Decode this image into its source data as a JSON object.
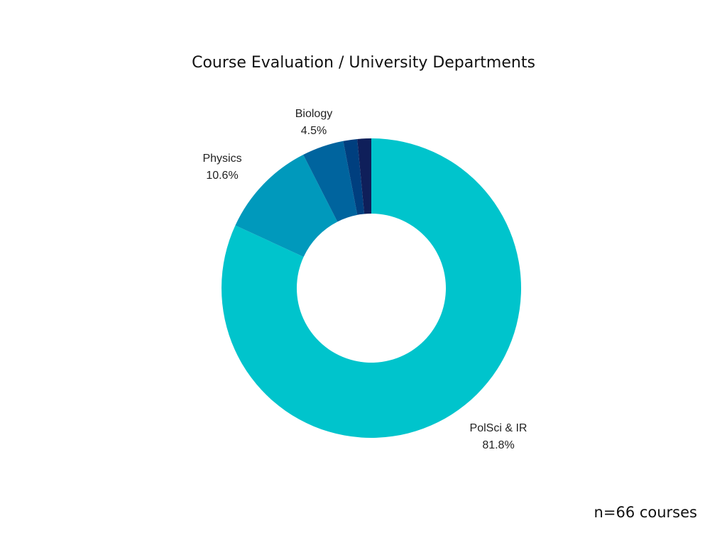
{
  "chart_data": {
    "type": "pie",
    "donut": true,
    "title": "Course Evaluation / University Departments",
    "note": "n=66 courses",
    "start": "top",
    "direction": "clockwise",
    "slices": [
      {
        "category": "PolSci & IR",
        "value": 81.8,
        "label_value": "81.8%",
        "color": "#00c4cc",
        "labeled": true
      },
      {
        "category": "Physics",
        "value": 10.6,
        "label_value": "10.6%",
        "color": "#0099bc",
        "labeled": true
      },
      {
        "category": "Biology",
        "value": 4.5,
        "label_value": "4.5%",
        "color": "#00649e",
        "labeled": true
      },
      {
        "category": "",
        "value": 1.5,
        "label_value": "",
        "color": "#003f7f",
        "labeled": false
      },
      {
        "category": "",
        "value": 1.5,
        "label_value": "",
        "color": "#0f1f5a",
        "labeled": false
      }
    ]
  }
}
